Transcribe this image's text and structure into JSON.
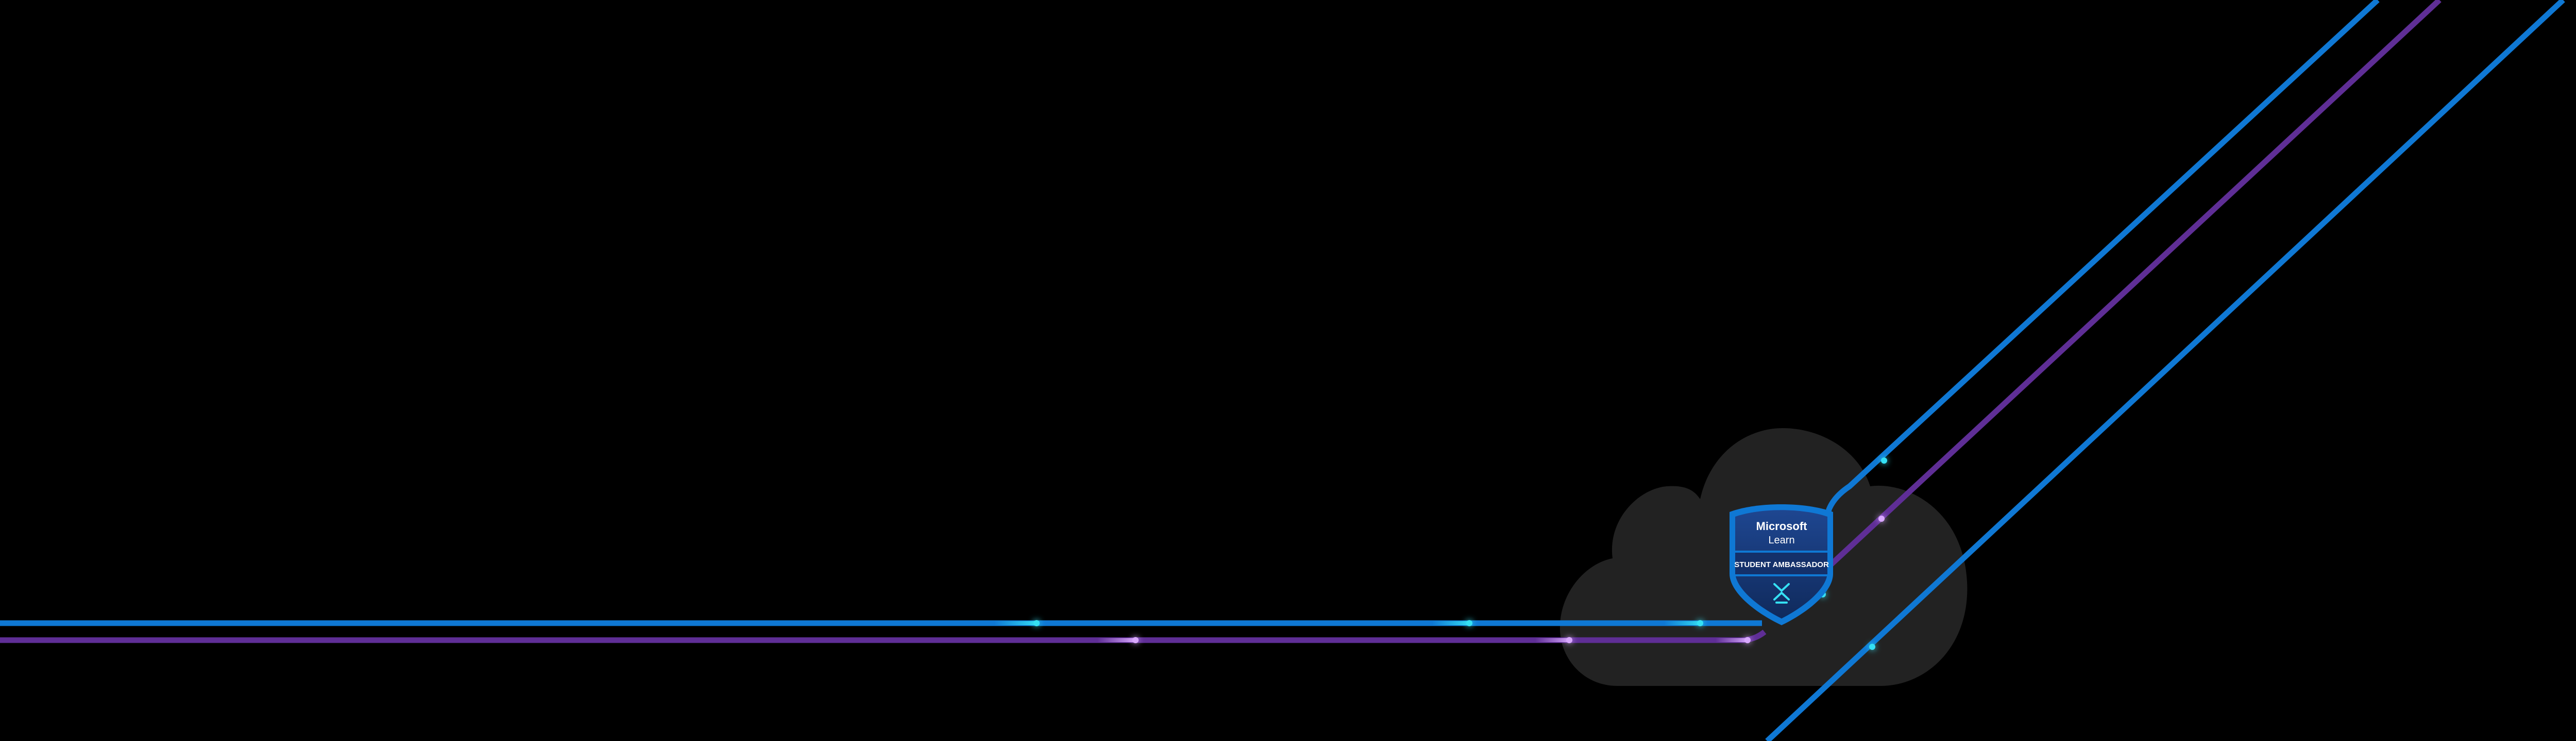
{
  "colors": {
    "background": "#000000",
    "cloud": "#222222",
    "line_blue": "#0F78D4",
    "line_purple": "#5F2E96",
    "glow_cyan": "#35E1F4",
    "glow_violet": "#D9A8FF",
    "badge_fill": "#1B3A7A",
    "badge_rim": "#0F78D4",
    "badge_band": "#14306A"
  },
  "badge": {
    "brand": "Microsoft",
    "product": "Learn",
    "program": "STUDENT AMBASSADOR",
    "emblem_icon": "student-ambassador-emblem-icon"
  }
}
